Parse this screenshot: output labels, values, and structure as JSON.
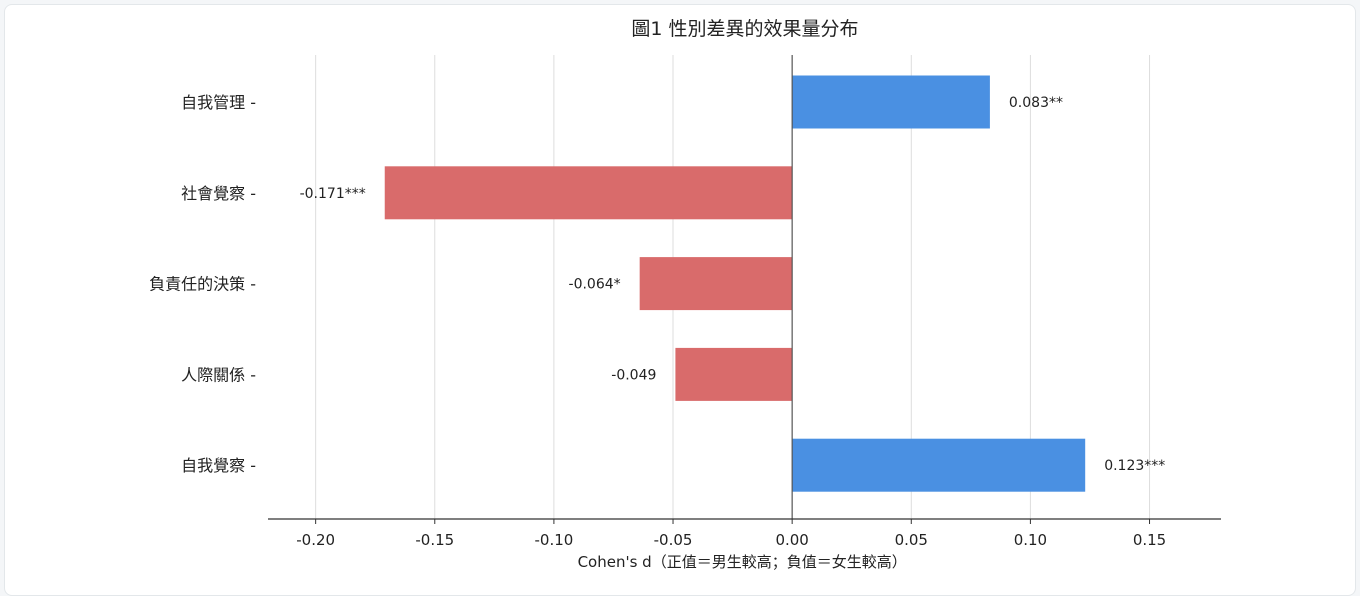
{
  "chart_data": {
    "type": "bar",
    "orientation": "horizontal",
    "title": "圖1 性別差異的效果量分布",
    "xlabel": "Cohen's d（正值＝男生較高；負值＝女生較高）",
    "ylabel": "",
    "categories": [
      "自我管理",
      "社會覺察",
      "負責任的決策",
      "人際關係",
      "自我覺察"
    ],
    "values": [
      0.083,
      -0.171,
      -0.064,
      -0.049,
      0.123
    ],
    "value_labels": [
      "0.083**",
      "-0.171***",
      "-0.064*",
      "-0.049",
      "0.123***"
    ],
    "xlim": [
      -0.22,
      0.18
    ],
    "xticks": [
      -0.2,
      -0.15,
      -0.1,
      -0.05,
      0.0,
      0.05,
      0.1,
      0.15
    ],
    "xtick_labels": [
      "-0.20",
      "-0.15",
      "-0.10",
      "-0.05",
      "0.00",
      "0.05",
      "0.10",
      "0.15"
    ],
    "grid": "vertical",
    "colors": {
      "positive": "#4a90e2",
      "negative": "#d96b6b"
    }
  }
}
